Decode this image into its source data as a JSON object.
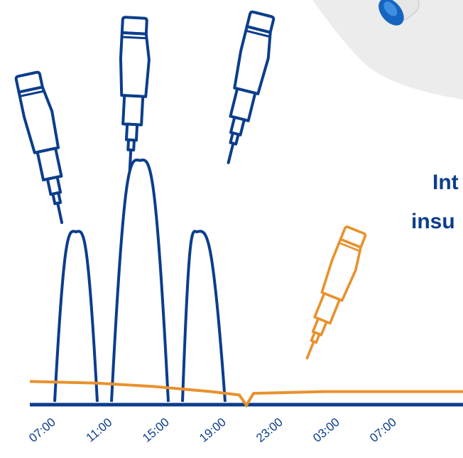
{
  "heading": {
    "line1": "Int",
    "line2": "insu"
  },
  "colors": {
    "bolus": "#0b3d8c",
    "basal": "#e8912d",
    "axis": "#0b3d8c",
    "panel": "#ececec",
    "vial_blue": "#1565c0"
  },
  "chart_data": {
    "type": "line",
    "xlabel": "",
    "ylabel": "",
    "x_ticks": [
      "07:00",
      "11:00",
      "15:00",
      "19:00",
      "23:00",
      "03:00",
      "07:00"
    ],
    "series": [
      {
        "values_description_hidden": null,
        "points": [
          [
            "07:00",
            0
          ],
          [
            "08:00",
            0
          ],
          [
            "09:30",
            1.0
          ],
          [
            "11:00",
            0
          ],
          [
            "12:00",
            0
          ],
          [
            "14:00",
            1.42
          ],
          [
            "16:00",
            0
          ],
          [
            "17:00",
            0
          ],
          [
            "18:00",
            1.0
          ],
          [
            "20:00",
            0
          ]
        ],
        "color": "#0b3d8c"
      },
      {
        "points": [
          [
            "07:00",
            0.12
          ],
          [
            "11:00",
            0.11
          ],
          [
            "15:00",
            0.09
          ],
          [
            "19:00",
            0.06
          ],
          [
            "21:00",
            0.04
          ],
          [
            "21:30",
            -0.02
          ],
          [
            "22:00",
            0.05
          ],
          [
            "03:00",
            0.06
          ],
          [
            "07:00",
            0.06
          ]
        ],
        "color": "#e8912d"
      }
    ]
  },
  "icons": [
    {
      "name": "insulin-pen-icon",
      "color": "#0b3d8c"
    },
    {
      "name": "insulin-pen-icon",
      "color": "#0b3d8c"
    },
    {
      "name": "insulin-pen-icon",
      "color": "#0b3d8c"
    },
    {
      "name": "insulin-pen-icon",
      "color": "#e8912d"
    },
    {
      "name": "insulin-vial-icon",
      "color": "#1565c0"
    }
  ]
}
